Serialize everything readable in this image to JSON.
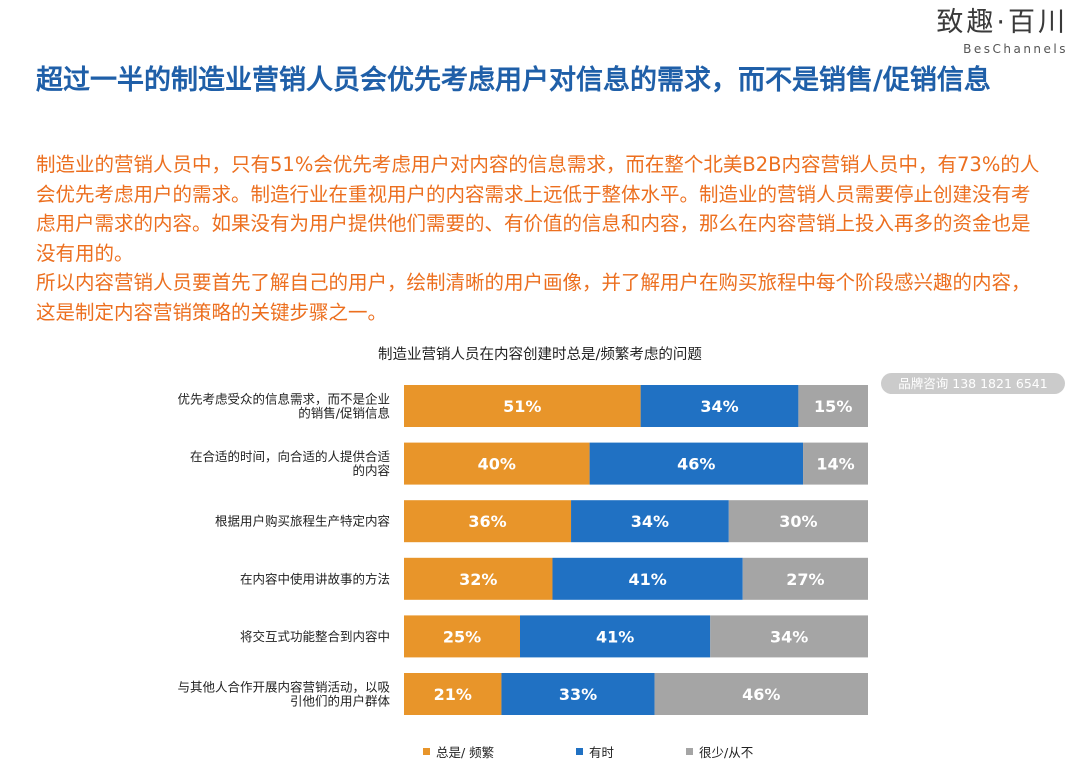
{
  "brand": {
    "name_cn": "致趣·百川",
    "name_en": "BesChannels"
  },
  "title": "超过一半的制造业营销人员会优先考虑用户对信息的需求，而不是销售/促销信息",
  "body_paragraphs": [
    "制造业的营销人员中，只有51%会优先考虑用户对内容的信息需求，而在整个北美B2B内容营销人员中，有73%的人会优先考虑用户的需求。制造行业在重视用户的内容需求上远低于整体水平。制造业的营销人员需要停止创建没有考虑用户需求的内容。如果没有为用户提供他们需要的、有价值的信息和内容，那么在内容营销上投入再多的资金也是没有用的。",
    "所以内容营销人员要首先了解自己的用户，绘制清晰的用户画像，并了解用户在购买旅程中每个阶段感兴趣的内容，这是制定内容营销策略的关键步骤之一。"
  ],
  "watermark": "品牌咨询 138 1821 6541",
  "chart_data": {
    "type": "bar",
    "orientation": "horizontal",
    "stacked": true,
    "title": "制造业营销人员在内容创建时总是/频繁考虑的问题",
    "unit": "%",
    "categories": [
      [
        "优先考虑受众的信息需求，而不是企业",
        "的销售/促销信息"
      ],
      [
        "在合适的时间，向合适的人提供合适",
        "的内容"
      ],
      [
        "根据用户购买旅程生产特定内容"
      ],
      [
        "在内容中使用讲故事的方法"
      ],
      [
        "将交互式功能整合到内容中"
      ],
      [
        "与其他人合作开展内容营销活动，以吸",
        "引他们的用户群体"
      ]
    ],
    "series": [
      {
        "name": "总是/ 频繁",
        "color": "#e8952a",
        "values": [
          51,
          40,
          36,
          32,
          25,
          21
        ]
      },
      {
        "name": "有时",
        "color": "#2071c3",
        "values": [
          34,
          46,
          34,
          41,
          41,
          33
        ]
      },
      {
        "name": "很少/从不",
        "color": "#a5a5a5",
        "values": [
          15,
          14,
          30,
          27,
          34,
          46
        ]
      }
    ],
    "xlim": [
      0,
      100
    ],
    "legend_position": "bottom",
    "grid": false
  }
}
